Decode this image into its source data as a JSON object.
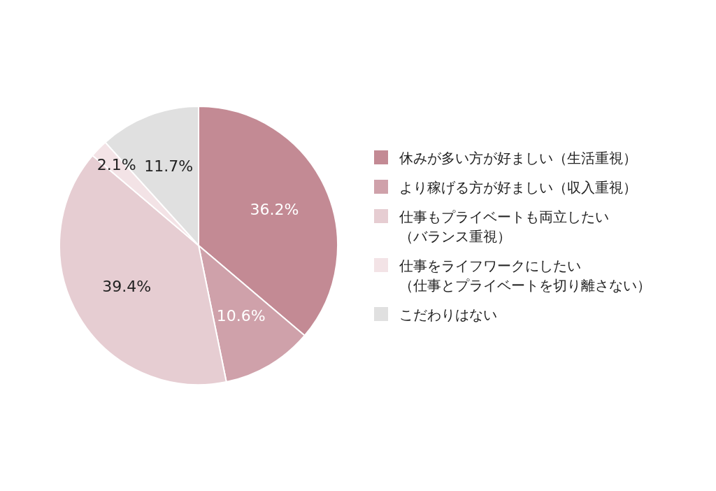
{
  "chart_data": {
    "type": "pie",
    "categories": [
      "休みが多い方が好ましい（生活重視）",
      "より稼げる方が好ましい（収入重視）",
      "仕事もプライベートも両立したい（バランス重視）",
      "仕事をライフワークにしたい（仕事とプライベートを切り離さない）",
      "こだわりはない"
    ],
    "values": [
      36.2,
      10.6,
      39.4,
      2.1,
      11.7
    ],
    "colors": [
      "#c38a94",
      "#cfa1aa",
      "#e6cdd2",
      "#f3e3e6",
      "#e0e0e0"
    ],
    "value_labels": [
      "36.2%",
      "10.6%",
      "39.4%",
      "2.1%",
      "11.7%"
    ],
    "legend": "right"
  }
}
